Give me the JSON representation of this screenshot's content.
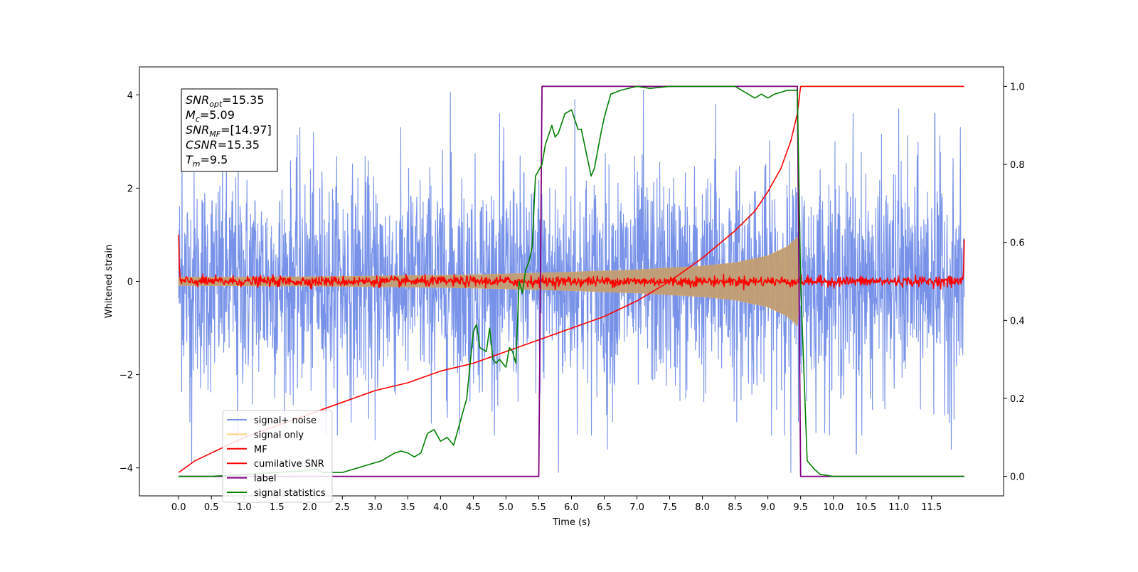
{
  "chart_data": {
    "type": "line",
    "xlabel": "Time (s)",
    "ylabel": "Whitened strain",
    "xlim": [
      -0.6,
      12.6
    ],
    "ylim": [
      -4.6,
      4.6
    ],
    "y2lim": [
      -0.05,
      1.05
    ],
    "x_ticks": [
      0.0,
      0.5,
      1.0,
      1.5,
      2.0,
      2.5,
      3.0,
      3.5,
      4.0,
      4.5,
      5.0,
      5.5,
      6.0,
      6.5,
      7.0,
      7.5,
      8.0,
      8.5,
      9.0,
      9.5,
      10.0,
      10.5,
      11.0,
      11.5
    ],
    "x_tick_labels": [
      "0.0",
      "0.5",
      "1.0",
      "1.5",
      "2.0",
      "2.5",
      "3.0",
      "3.5",
      "4.0",
      "4.5",
      "5.0",
      "5.5",
      "6.0",
      "6.5",
      "7.0",
      "7.5",
      "8.0",
      "8.5",
      "9.0",
      "9.5",
      "10.0",
      "10.5",
      "11.0",
      "11.5"
    ],
    "y_ticks": [
      -4,
      -2,
      0,
      2,
      4
    ],
    "y_tick_labels": [
      "−4",
      "−2",
      "0",
      "2",
      "4"
    ],
    "y2_ticks": [
      0.0,
      0.2,
      0.4,
      0.6,
      0.8,
      1.0
    ],
    "y2_tick_labels": [
      "0.0",
      "0.2",
      "0.4",
      "0.6",
      "0.8",
      "1.0"
    ],
    "grid": false,
    "legend_position": "bottom-left",
    "annotation": [
      {
        "base": "SNR",
        "sub": "opt",
        "value": "=15.35"
      },
      {
        "base": "M",
        "sub": "c",
        "value": "=5.09"
      },
      {
        "base": "SNR",
        "sub": "MF",
        "value": "=[14.97]"
      },
      {
        "base": "CSNR",
        "sub": "",
        "value": "=15.35"
      },
      {
        "base": "T",
        "sub": "m",
        "value": "=9.5"
      }
    ],
    "series": [
      {
        "name": "signal+ noise",
        "color": "#7792e8",
        "axis": "left",
        "description_kind": "noise",
        "x_range": [
          0.0,
          12.0
        ],
        "amplitude_envelope": [
          -3.3,
          3.3
        ],
        "extreme_peaks": [
          [
            0.05,
            3.9
          ],
          [
            1.85,
            3.3
          ],
          [
            4.15,
            4.05
          ],
          [
            4.9,
            3.6
          ],
          [
            6.05,
            3.9
          ],
          [
            7.1,
            4.1
          ],
          [
            8.2,
            3.8
          ],
          [
            10.3,
            3.6
          ],
          [
            11.0,
            3.7
          ],
          [
            11.55,
            3.6
          ],
          [
            0.2,
            -3.9
          ],
          [
            0.9,
            -3.6
          ],
          [
            3.0,
            -3.4
          ],
          [
            5.8,
            -4.1
          ],
          [
            6.55,
            -3.6
          ],
          [
            9.35,
            -4.1
          ],
          [
            10.35,
            -3.7
          ],
          [
            11.8,
            -3.6
          ]
        ]
      },
      {
        "name": "signal only",
        "color": "#c29e72",
        "axis": "left",
        "description_kind": "chirp_envelope",
        "envelope": [
          [
            0.0,
            0.09
          ],
          [
            2.0,
            0.1
          ],
          [
            4.0,
            0.13
          ],
          [
            5.0,
            0.16
          ],
          [
            6.0,
            0.2
          ],
          [
            7.0,
            0.25
          ],
          [
            8.0,
            0.33
          ],
          [
            8.5,
            0.4
          ],
          [
            9.0,
            0.55
          ],
          [
            9.3,
            0.75
          ],
          [
            9.45,
            0.95
          ],
          [
            9.5,
            0.0
          ]
        ]
      },
      {
        "name": "MF",
        "color": "#ff0000",
        "axis": "left",
        "description_kind": "noise_small",
        "x_range": [
          0.0,
          12.0
        ],
        "amplitude": 0.12,
        "endpoints": [
          [
            0.0,
            1.0
          ],
          [
            12.0,
            0.9
          ]
        ]
      },
      {
        "name": "cumilative SNR",
        "color": "#ff0000",
        "axis": "right",
        "x": [
          0.0,
          0.25,
          0.5,
          1.0,
          1.5,
          2.0,
          2.5,
          3.0,
          3.5,
          4.0,
          4.5,
          5.0,
          5.5,
          6.0,
          6.5,
          7.0,
          7.5,
          8.0,
          8.5,
          8.8,
          9.0,
          9.2,
          9.35,
          9.45,
          9.5,
          12.0
        ],
        "y": [
          0.01,
          0.04,
          0.06,
          0.1,
          0.13,
          0.16,
          0.19,
          0.22,
          0.24,
          0.27,
          0.29,
          0.32,
          0.35,
          0.38,
          0.41,
          0.45,
          0.5,
          0.56,
          0.63,
          0.68,
          0.73,
          0.79,
          0.86,
          0.93,
          1.0,
          1.0
        ]
      },
      {
        "name": "label",
        "color": "#800080",
        "axis": "right",
        "x": [
          0.0,
          5.5,
          5.55,
          9.45,
          9.5,
          12.0
        ],
        "y": [
          0.0,
          0.0,
          1.0,
          1.0,
          0.0,
          0.0
        ]
      },
      {
        "name": "signal statistics",
        "color": "#008000",
        "axis": "right",
        "x": [
          0.0,
          0.5,
          1.0,
          1.5,
          2.0,
          2.1,
          2.2,
          2.3,
          2.5,
          2.7,
          2.9,
          3.0,
          3.1,
          3.2,
          3.3,
          3.4,
          3.5,
          3.6,
          3.7,
          3.8,
          3.9,
          4.0,
          4.1,
          4.2,
          4.3,
          4.4,
          4.5,
          4.55,
          4.6,
          4.7,
          4.75,
          4.8,
          4.85,
          4.9,
          5.0,
          5.05,
          5.1,
          5.15,
          5.2,
          5.25,
          5.3,
          5.35,
          5.4,
          5.45,
          5.55,
          5.6,
          5.7,
          5.75,
          5.8,
          5.9,
          6.0,
          6.1,
          6.15,
          6.3,
          6.35,
          6.45,
          6.5,
          6.6,
          6.75,
          7.0,
          7.2,
          7.5,
          8.0,
          8.5,
          8.7,
          8.8,
          8.9,
          9.0,
          9.1,
          9.3,
          9.45,
          9.5,
          9.6,
          9.7,
          9.8,
          10.0,
          11.0,
          12.0
        ],
        "y": [
          0.0,
          0.0,
          0.005,
          0.01,
          0.015,
          0.02,
          0.01,
          0.01,
          0.01,
          0.02,
          0.03,
          0.035,
          0.04,
          0.05,
          0.06,
          0.065,
          0.06,
          0.05,
          0.06,
          0.11,
          0.12,
          0.09,
          0.1,
          0.08,
          0.14,
          0.2,
          0.37,
          0.39,
          0.33,
          0.32,
          0.38,
          0.3,
          0.29,
          0.3,
          0.28,
          0.33,
          0.32,
          0.29,
          0.5,
          0.47,
          0.53,
          0.55,
          0.59,
          0.77,
          0.8,
          0.85,
          0.9,
          0.87,
          0.88,
          0.93,
          0.94,
          0.89,
          0.89,
          0.77,
          0.79,
          0.88,
          0.92,
          0.98,
          0.99,
          1.0,
          0.995,
          1.0,
          1.0,
          1.0,
          0.98,
          0.97,
          0.98,
          0.97,
          0.98,
          0.99,
          0.99,
          0.5,
          0.04,
          0.02,
          0.005,
          0.0,
          0.0,
          0.0
        ]
      }
    ]
  }
}
